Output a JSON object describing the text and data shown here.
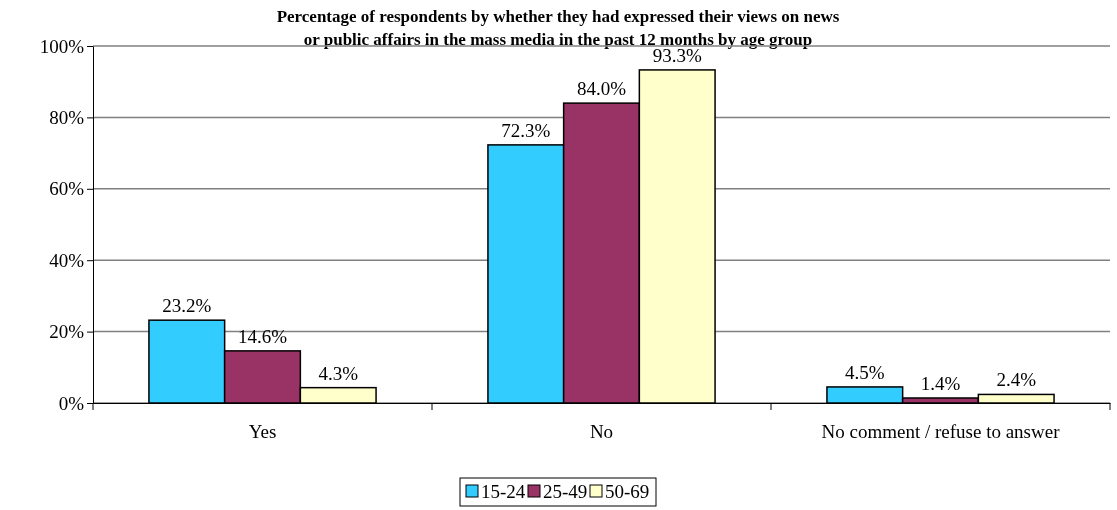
{
  "chart_data": {
    "type": "bar",
    "title": "Percentage of respondents by whether they had expressed their views on news\nor public affairs in the mass media in the past 12 months by age group",
    "categories": [
      "Yes",
      "No",
      "No comment / refuse to answer"
    ],
    "series": [
      {
        "name": "15-24",
        "color": "#33ccff",
        "values": [
          23.2,
          72.3,
          4.5
        ],
        "value_labels": [
          "23.2%",
          "72.3%",
          "4.5%"
        ]
      },
      {
        "name": "25-49",
        "color": "#993366",
        "values": [
          14.6,
          84.0,
          1.4
        ],
        "value_labels": [
          "14.6%",
          "84.0%",
          "1.4%"
        ]
      },
      {
        "name": "50-69",
        "color": "#ffffcc",
        "values": [
          4.3,
          93.3,
          2.4
        ],
        "value_labels": [
          "4.3%",
          "93.3%",
          "2.4%"
        ]
      }
    ],
    "ylim": [
      0,
      100
    ],
    "yticks": [
      {
        "value": 0,
        "label": "0%"
      },
      {
        "value": 20,
        "label": "20%"
      },
      {
        "value": 40,
        "label": "40%"
      },
      {
        "value": 60,
        "label": "60%"
      },
      {
        "value": 80,
        "label": "80%"
      },
      {
        "value": 100,
        "label": "100%"
      }
    ],
    "grid": "y",
    "legend": "bottom"
  }
}
